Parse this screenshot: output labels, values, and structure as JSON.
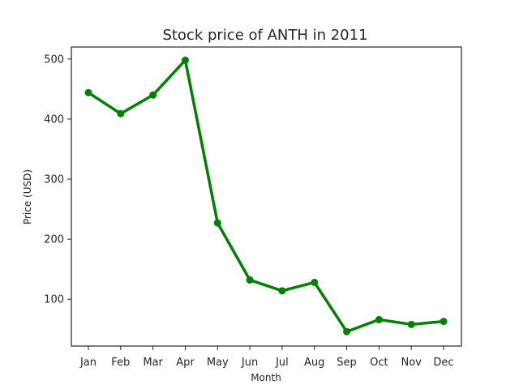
{
  "chart_data": {
    "type": "line",
    "title": "Stock price of ANTH in 2011",
    "xlabel": "Month",
    "ylabel": "Price (USD)",
    "categories": [
      "Jan",
      "Feb",
      "Mar",
      "Apr",
      "May",
      "Jun",
      "Jul",
      "Aug",
      "Sep",
      "Oct",
      "Nov",
      "Dec"
    ],
    "series": [
      {
        "values": [
          444,
          409,
          440,
          498,
          227,
          132,
          114,
          128,
          46,
          66,
          58,
          63
        ],
        "color": "#008000"
      }
    ],
    "yticks": [
      100,
      200,
      300,
      400,
      500
    ],
    "ylim": [
      22,
      520
    ],
    "grid": false,
    "legend": false
  }
}
